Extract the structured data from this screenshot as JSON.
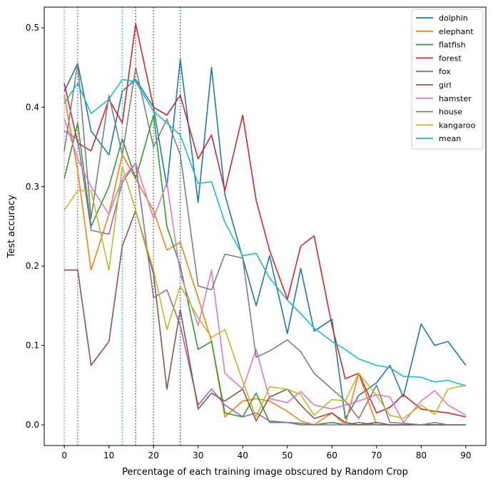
{
  "chart_data": {
    "type": "line",
    "title": "",
    "xlabel": "Percentage of each training image obscured by Random Crop",
    "ylabel": "Test accuracy",
    "xlim": [
      -4.5,
      94.5
    ],
    "ylim": [
      -0.026,
      0.526
    ],
    "xticks": [
      0,
      10,
      20,
      30,
      40,
      50,
      60,
      70,
      80,
      90
    ],
    "yticks": [
      0.0,
      0.1,
      0.2,
      0.3,
      0.4,
      0.5
    ],
    "ytick_labels": [
      "0.0",
      "0.1",
      "0.2",
      "0.3",
      "0.4",
      "0.5"
    ],
    "grid": false,
    "legend_position": "top-right",
    "x": [
      0,
      3,
      6,
      10,
      13,
      16,
      20,
      23,
      26,
      30,
      33,
      36,
      40,
      43,
      46,
      50,
      53,
      56,
      60,
      63,
      66,
      70,
      73,
      76,
      80,
      83,
      86,
      90
    ],
    "series": [
      {
        "name": "dolphin",
        "color": "#1f77b4",
        "values": [
          0.42,
          0.455,
          0.37,
          0.34,
          0.42,
          0.435,
          0.4,
          0.3,
          0.46,
          0.28,
          0.45,
          0.29,
          0.21,
          0.15,
          0.213,
          0.115,
          0.197,
          0.118,
          0.133,
          0.008,
          0.037,
          0.053,
          0.075,
          0.035,
          0.127,
          0.1,
          0.105,
          0.075
        ]
      },
      {
        "name": "elephant",
        "color": "#ff7f0e",
        "values": [
          0.415,
          0.32,
          0.195,
          0.265,
          0.34,
          0.31,
          0.27,
          0.22,
          0.23,
          0.16,
          0.105,
          0.01,
          0.03,
          0.033,
          0.03,
          0.017,
          0.005,
          0.0,
          0.015,
          0.0,
          0.065,
          0.0,
          0.0,
          0.0,
          0.0,
          0.0,
          0.0,
          0.0
        ]
      },
      {
        "name": "flatfish",
        "color": "#2ca02c",
        "values": [
          0.31,
          0.38,
          0.25,
          0.3,
          0.36,
          0.31,
          0.39,
          0.25,
          0.2,
          0.095,
          0.105,
          0.015,
          0.01,
          0.04,
          0.003,
          0.003,
          0.0,
          0.0,
          0.003,
          0.0,
          0.0,
          0.0,
          0.0,
          0.0,
          0.0,
          0.0,
          0.0,
          0.0
        ]
      },
      {
        "name": "forest",
        "color": "#d62728",
        "values": [
          0.43,
          0.355,
          0.345,
          0.41,
          0.38,
          0.505,
          0.4,
          0.39,
          0.415,
          0.335,
          0.365,
          0.295,
          0.39,
          0.283,
          0.22,
          0.158,
          0.225,
          0.238,
          0.125,
          0.058,
          0.065,
          0.015,
          0.022,
          0.038,
          0.02,
          0.017,
          0.015,
          0.01
        ]
      },
      {
        "name": "fox",
        "color": "#9467bd",
        "values": [
          0.37,
          0.36,
          0.245,
          0.24,
          0.305,
          0.33,
          0.16,
          0.17,
          0.125,
          0.025,
          0.045,
          0.025,
          0.01,
          0.015,
          0.005,
          0.003,
          0.002,
          0.0,
          0.0,
          0.0,
          0.003,
          0.0,
          0.0,
          0.0,
          0.0,
          0.0,
          0.0,
          0.0
        ]
      },
      {
        "name": "girl",
        "color": "#8c564b",
        "values": [
          0.195,
          0.195,
          0.075,
          0.105,
          0.225,
          0.27,
          0.19,
          0.045,
          0.145,
          0.02,
          0.04,
          0.03,
          0.045,
          0.005,
          0.035,
          0.045,
          0.025,
          0.008,
          0.015,
          0.003,
          0.0,
          0.003,
          0.0,
          0.0,
          0.0,
          0.0,
          0.0,
          0.0
        ]
      },
      {
        "name": "hamster",
        "color": "#e377c2",
        "values": [
          0.385,
          0.335,
          0.3,
          0.265,
          0.31,
          0.33,
          0.26,
          0.305,
          0.19,
          0.125,
          0.195,
          0.065,
          0.045,
          0.095,
          0.033,
          0.028,
          0.042,
          0.025,
          0.02,
          0.025,
          0.03,
          0.038,
          0.035,
          0.003,
          0.03,
          0.043,
          0.025,
          0.012
        ]
      },
      {
        "name": "house",
        "color": "#7f7f7f",
        "values": [
          0.345,
          0.455,
          0.26,
          0.415,
          0.34,
          0.45,
          0.35,
          0.385,
          0.34,
          0.175,
          0.17,
          0.215,
          0.21,
          0.085,
          0.093,
          0.107,
          0.092,
          0.065,
          0.045,
          0.03,
          0.008,
          0.05,
          0.003,
          0.002,
          0.0,
          0.003,
          0.0,
          0.0
        ]
      },
      {
        "name": "kangaroo",
        "color": "#bcbd22",
        "values": [
          0.27,
          0.295,
          0.295,
          0.195,
          0.325,
          0.27,
          0.195,
          0.12,
          0.175,
          0.135,
          0.11,
          0.12,
          0.055,
          0.01,
          0.048,
          0.045,
          0.038,
          0.012,
          0.032,
          0.03,
          0.065,
          0.037,
          0.012,
          0.008,
          0.025,
          0.013,
          0.045,
          0.05
        ]
      },
      {
        "name": "mean",
        "color": "#17becf",
        "values": [
          0.405,
          0.43,
          0.392,
          0.41,
          0.435,
          0.432,
          0.395,
          0.38,
          0.365,
          0.304,
          0.306,
          0.255,
          0.213,
          0.216,
          0.185,
          0.157,
          0.14,
          0.122,
          0.105,
          0.095,
          0.083,
          0.075,
          0.072,
          0.061,
          0.06,
          0.054,
          0.056,
          0.049
        ]
      }
    ],
    "vlines": [
      {
        "x": 0,
        "color": "#e377c2"
      },
      {
        "x": 3,
        "color": "#7f7f7f"
      },
      {
        "x": 13,
        "color": "#17becf"
      },
      {
        "x": 16,
        "color": "#8c564b"
      },
      {
        "x": 20,
        "color": "#2ca02c"
      },
      {
        "x": 26,
        "color": "#1f77b4"
      }
    ]
  }
}
